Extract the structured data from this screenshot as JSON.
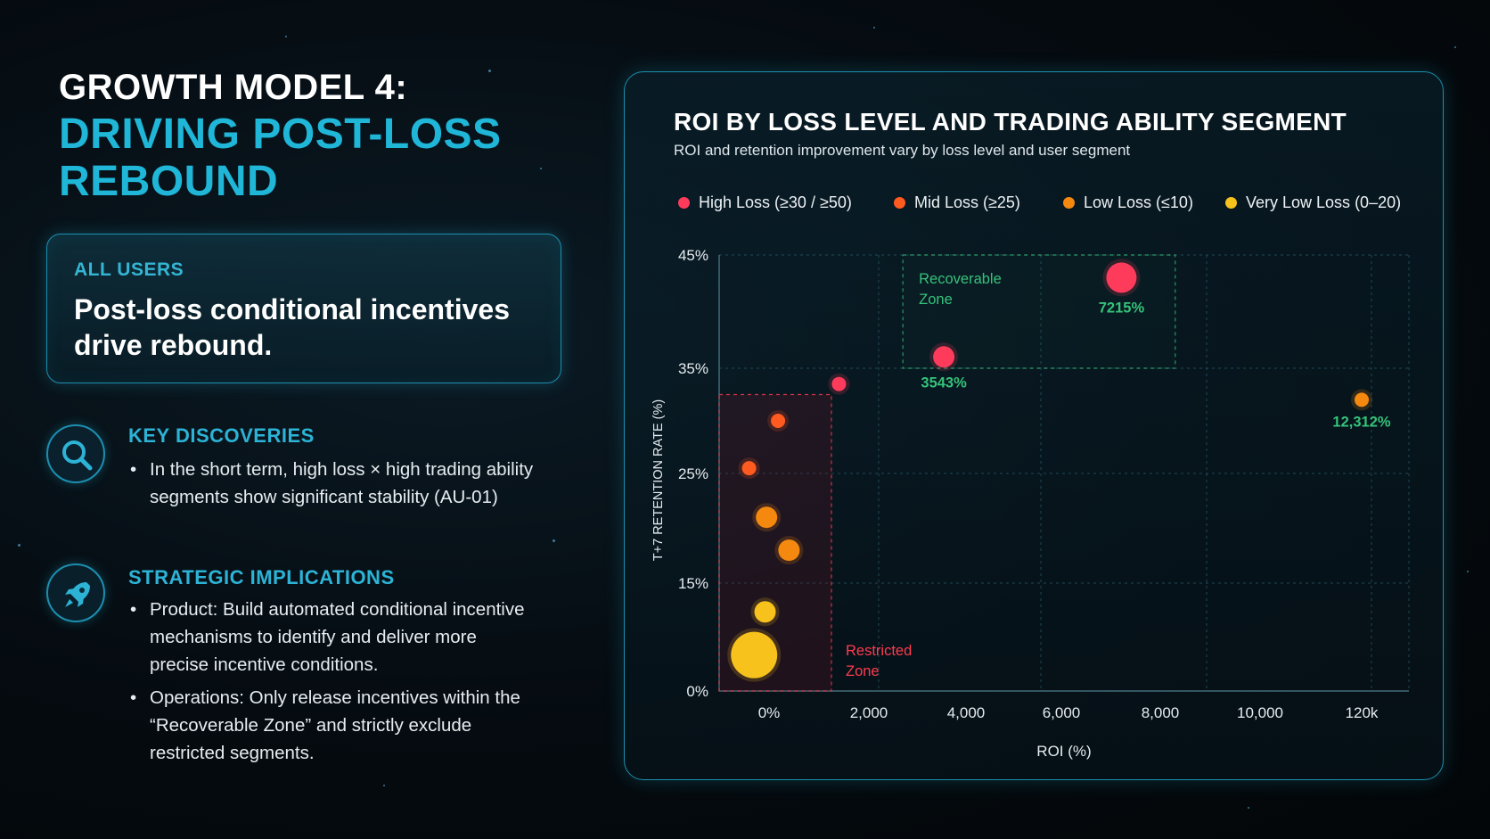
{
  "header": {
    "title_line1": "GROWTH MODEL 4:",
    "title_line2": "DRIVING POST-LOSS REBOUND"
  },
  "all_users": {
    "label": "ALL USERS",
    "text": "Post-loss conditional incentives drive rebound."
  },
  "key_discoveries": {
    "heading": "KEY DISCOVERIES",
    "icon": "search-icon",
    "items": [
      "In the short term, high loss × high trading ability segments show significant stability (AU-01)"
    ]
  },
  "strategic_implications": {
    "heading": "STRATEGIC IMPLICATIONS",
    "icon": "rocket-icon",
    "items": [
      "Product: Build automated conditional incentive mechanisms to identify and deliver more precise incentive conditions.",
      "Operations: Only release incentives within the “Recoverable Zone” and strictly exclude restricted segments."
    ]
  },
  "colors": {
    "accent": "#1fb6d8",
    "high_loss": "#ff3b5c",
    "mid_loss": "#ff5a1f",
    "low_loss": "#f5890f",
    "very_low_loss": "#f7c21b",
    "recoverable_zone": "#35c27a",
    "restricted_zone": "#ff3b4f"
  },
  "chart_data": {
    "type": "scatter",
    "title": "ROI BY LOSS LEVEL AND TRADING ABILITY SEGMENT",
    "subtitle": "ROI and retention improvement vary by loss level and user segment",
    "xlabel": "ROI (%)",
    "ylabel": "T+7 RETENTION RATE (%)",
    "x_ticks": [
      "0%",
      "2,000",
      "4,000",
      "6,000",
      "8,000",
      "10,000",
      "120k"
    ],
    "y_ticks": [
      "0%",
      "15%",
      "25%",
      "35%",
      "45%"
    ],
    "grid": true,
    "legend_position": "top",
    "series": [
      {
        "name": "High Loss (≥30 / ≥50)",
        "color": "#ff3b5c",
        "points": [
          {
            "x": 7215,
            "y": 43,
            "label": "7215%",
            "size": "large"
          },
          {
            "x": 3543,
            "y": 36,
            "label": "3543%",
            "size": "medium"
          },
          {
            "x": 1400,
            "y": 33.5,
            "label": "",
            "size": "small"
          }
        ]
      },
      {
        "name": "Mid Loss (≥25)",
        "color": "#ff5a1f",
        "points": [
          {
            "x": 180,
            "y": 30,
            "label": "",
            "size": "small"
          },
          {
            "x": -400,
            "y": 25.5,
            "label": "",
            "size": "small"
          }
        ]
      },
      {
        "name": "Low Loss (≤10)",
        "color": "#f5890f",
        "points": [
          {
            "x": 12312,
            "y": 32,
            "label": "12,312%",
            "size": "small"
          },
          {
            "x": -50,
            "y": 21,
            "label": "",
            "size": "medium"
          },
          {
            "x": 400,
            "y": 18,
            "label": "",
            "size": "medium"
          }
        ]
      },
      {
        "name": "Very Low Loss (0–20)",
        "color": "#f7c21b",
        "points": [
          {
            "x": -80,
            "y": 11,
            "label": "",
            "size": "medium"
          },
          {
            "x": -300,
            "y": 5,
            "label": "",
            "size": "xlarge"
          }
        ]
      }
    ],
    "annotations": [
      {
        "text": [
          "Recoverable",
          "Zone"
        ],
        "zone": "recoverable",
        "x_range": [
          2700,
          8300
        ],
        "y_range": [
          35,
          45
        ]
      },
      {
        "text": [
          "Restricted",
          "Zone"
        ],
        "zone": "restricted",
        "x_range": [
          -1000,
          1250
        ],
        "y_range": [
          0,
          32.5
        ]
      }
    ]
  }
}
